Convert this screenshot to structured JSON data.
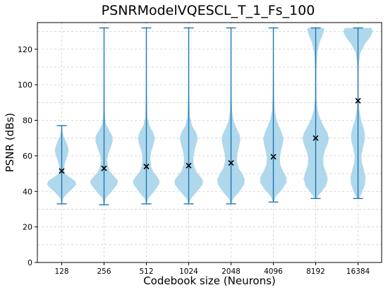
{
  "chart_data": {
    "type": "violin",
    "title": "PSNRModelVQESCL_T_1_Fs_100",
    "xlabel": "Codebook size (Neurons)",
    "ylabel": "PSNR (dBs)",
    "ylim": [
      0,
      135
    ],
    "yticks": [
      0,
      20,
      40,
      60,
      80,
      100,
      120
    ],
    "grid": true,
    "categories": [
      "128",
      "256",
      "512",
      "1024",
      "2048",
      "4096",
      "8192",
      "16384"
    ],
    "series": [
      {
        "min": 33,
        "max": 77,
        "mean": 51.5,
        "density": [
          [
            33,
            0.02
          ],
          [
            36,
            0.08
          ],
          [
            39,
            0.38
          ],
          [
            42,
            0.75
          ],
          [
            44,
            0.95
          ],
          [
            46,
            0.85
          ],
          [
            48,
            0.5
          ],
          [
            50,
            0.22
          ],
          [
            52,
            0.15
          ],
          [
            55,
            0.18
          ],
          [
            58,
            0.28
          ],
          [
            61,
            0.4
          ],
          [
            63,
            0.45
          ],
          [
            65,
            0.4
          ],
          [
            68,
            0.28
          ],
          [
            71,
            0.12
          ],
          [
            74,
            0.05
          ],
          [
            77,
            0.01
          ]
        ]
      },
      {
        "min": 32.5,
        "max": 132,
        "mean": 53,
        "density": [
          [
            32.5,
            0.02
          ],
          [
            36,
            0.1
          ],
          [
            40,
            0.5
          ],
          [
            44,
            0.85
          ],
          [
            46,
            0.9
          ],
          [
            48,
            0.7
          ],
          [
            51,
            0.4
          ],
          [
            54,
            0.25
          ],
          [
            57,
            0.2
          ],
          [
            60,
            0.24
          ],
          [
            64,
            0.4
          ],
          [
            68,
            0.55
          ],
          [
            71,
            0.55
          ],
          [
            74,
            0.35
          ],
          [
            78,
            0.12
          ],
          [
            84,
            0.05
          ],
          [
            95,
            0.03
          ],
          [
            110,
            0.02
          ],
          [
            125,
            0.02
          ],
          [
            132,
            0.01
          ]
        ]
      },
      {
        "min": 33,
        "max": 132,
        "mean": 54,
        "density": [
          [
            33,
            0.02
          ],
          [
            36,
            0.12
          ],
          [
            40,
            0.5
          ],
          [
            44,
            0.82
          ],
          [
            46,
            0.86
          ],
          [
            48,
            0.72
          ],
          [
            51,
            0.45
          ],
          [
            54,
            0.3
          ],
          [
            58,
            0.25
          ],
          [
            62,
            0.3
          ],
          [
            66,
            0.45
          ],
          [
            70,
            0.55
          ],
          [
            73,
            0.45
          ],
          [
            77,
            0.2
          ],
          [
            82,
            0.07
          ],
          [
            95,
            0.03
          ],
          [
            110,
            0.02
          ],
          [
            125,
            0.02
          ],
          [
            132,
            0.01
          ]
        ]
      },
      {
        "min": 33,
        "max": 132,
        "mean": 54.5,
        "density": [
          [
            33,
            0.02
          ],
          [
            36,
            0.15
          ],
          [
            40,
            0.55
          ],
          [
            44,
            0.9
          ],
          [
            46,
            0.92
          ],
          [
            48,
            0.78
          ],
          [
            51,
            0.5
          ],
          [
            55,
            0.32
          ],
          [
            59,
            0.3
          ],
          [
            63,
            0.38
          ],
          [
            67,
            0.5
          ],
          [
            70,
            0.58
          ],
          [
            73,
            0.48
          ],
          [
            77,
            0.22
          ],
          [
            82,
            0.08
          ],
          [
            95,
            0.03
          ],
          [
            110,
            0.02
          ],
          [
            125,
            0.02
          ],
          [
            132,
            0.01
          ]
        ]
      },
      {
        "min": 33,
        "max": 132,
        "mean": 56,
        "density": [
          [
            33,
            0.02
          ],
          [
            36,
            0.15
          ],
          [
            40,
            0.55
          ],
          [
            44,
            0.85
          ],
          [
            47,
            0.88
          ],
          [
            50,
            0.72
          ],
          [
            53,
            0.5
          ],
          [
            57,
            0.38
          ],
          [
            61,
            0.4
          ],
          [
            65,
            0.52
          ],
          [
            69,
            0.6
          ],
          [
            72,
            0.55
          ],
          [
            75,
            0.38
          ],
          [
            79,
            0.18
          ],
          [
            85,
            0.07
          ],
          [
            95,
            0.03
          ],
          [
            110,
            0.02
          ],
          [
            125,
            0.02
          ],
          [
            132,
            0.01
          ]
        ]
      },
      {
        "min": 34,
        "max": 132,
        "mean": 59.5,
        "density": [
          [
            34,
            0.02
          ],
          [
            37,
            0.15
          ],
          [
            41,
            0.55
          ],
          [
            45,
            0.85
          ],
          [
            48,
            0.85
          ],
          [
            51,
            0.65
          ],
          [
            55,
            0.45
          ],
          [
            59,
            0.42
          ],
          [
            63,
            0.5
          ],
          [
            67,
            0.62
          ],
          [
            70,
            0.65
          ],
          [
            73,
            0.55
          ],
          [
            77,
            0.35
          ],
          [
            81,
            0.18
          ],
          [
            86,
            0.08
          ],
          [
            95,
            0.04
          ],
          [
            110,
            0.02
          ],
          [
            125,
            0.02
          ],
          [
            132,
            0.01
          ]
        ]
      },
      {
        "min": 36,
        "max": 132,
        "mean": 70,
        "density": [
          [
            36,
            0.05
          ],
          [
            39,
            0.3
          ],
          [
            43,
            0.65
          ],
          [
            47,
            0.78
          ],
          [
            51,
            0.65
          ],
          [
            55,
            0.5
          ],
          [
            59,
            0.48
          ],
          [
            63,
            0.6
          ],
          [
            67,
            0.78
          ],
          [
            70,
            0.85
          ],
          [
            73,
            0.75
          ],
          [
            77,
            0.5
          ],
          [
            81,
            0.28
          ],
          [
            86,
            0.12
          ],
          [
            92,
            0.05
          ],
          [
            100,
            0.04
          ],
          [
            110,
            0.05
          ],
          [
            118,
            0.1
          ],
          [
            124,
            0.25
          ],
          [
            128,
            0.45
          ],
          [
            131,
            0.55
          ],
          [
            132,
            0.5
          ]
        ]
      },
      {
        "min": 36,
        "max": 132,
        "mean": 91,
        "density": [
          [
            36,
            0.08
          ],
          [
            40,
            0.28
          ],
          [
            44,
            0.45
          ],
          [
            48,
            0.48
          ],
          [
            52,
            0.38
          ],
          [
            56,
            0.25
          ],
          [
            60,
            0.22
          ],
          [
            64,
            0.3
          ],
          [
            68,
            0.42
          ],
          [
            72,
            0.45
          ],
          [
            76,
            0.35
          ],
          [
            80,
            0.2
          ],
          [
            86,
            0.08
          ],
          [
            95,
            0.03
          ],
          [
            105,
            0.03
          ],
          [
            112,
            0.05
          ],
          [
            118,
            0.15
          ],
          [
            123,
            0.45
          ],
          [
            127,
            0.8
          ],
          [
            130,
            0.95
          ],
          [
            132,
            0.85
          ]
        ]
      }
    ]
  }
}
